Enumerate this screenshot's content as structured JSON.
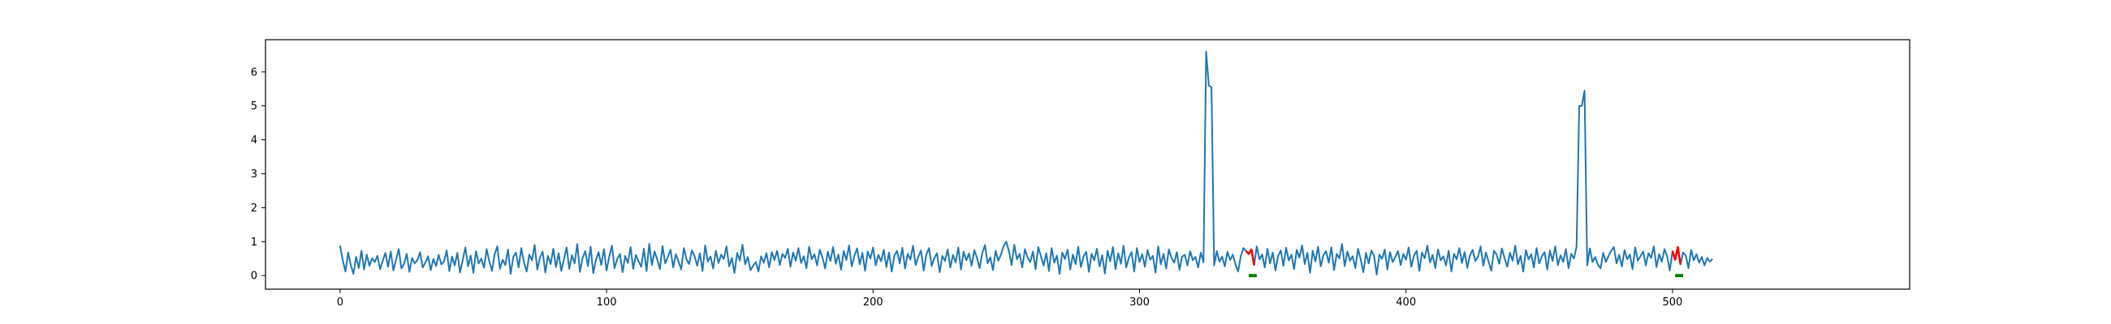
{
  "chart_data": {
    "type": "line",
    "title": "",
    "xlabel": "",
    "ylabel": "",
    "xlim": [
      -28,
      589
    ],
    "ylim": [
      -0.4,
      6.95
    ],
    "x_ticks": [
      {
        "value": 0,
        "label": "0"
      },
      {
        "value": 100,
        "label": "100"
      },
      {
        "value": 200,
        "label": "200"
      },
      {
        "value": 300,
        "label": "300"
      },
      {
        "value": 400,
        "label": "400"
      },
      {
        "value": 500,
        "label": "500"
      }
    ],
    "y_ticks": [
      {
        "value": 0,
        "label": "0"
      },
      {
        "value": 1,
        "label": "1"
      },
      {
        "value": 2,
        "label": "2"
      },
      {
        "value": 3,
        "label": "3"
      },
      {
        "value": 4,
        "label": "4"
      },
      {
        "value": 5,
        "label": "5"
      },
      {
        "value": 6,
        "label": "6"
      }
    ],
    "grid": false,
    "legend": "none",
    "colors": {
      "signal": "#1f77b4",
      "anomaly": "#ff0000",
      "marker": "#008000"
    },
    "series": [
      {
        "role": "signal",
        "x_start": 0,
        "x_step": 1,
        "values": [
          0.88,
          0.45,
          0.12,
          0.68,
          0.31,
          0.05,
          0.55,
          0.22,
          0.73,
          0.18,
          0.62,
          0.29,
          0.51,
          0.4,
          0.58,
          0.19,
          0.44,
          0.67,
          0.26,
          0.71,
          0.15,
          0.47,
          0.78,
          0.21,
          0.35,
          0.64,
          0.11,
          0.52,
          0.36,
          0.46,
          0.69,
          0.24,
          0.38,
          0.57,
          0.16,
          0.49,
          0.28,
          0.61,
          0.33,
          0.42,
          0.74,
          0.13,
          0.56,
          0.3,
          0.67,
          0.09,
          0.45,
          0.83,
          0.27,
          0.59,
          0.08,
          0.72,
          0.36,
          0.5,
          0.23,
          0.78,
          0.41,
          0.14,
          0.63,
          0.86,
          0.2,
          0.47,
          0.31,
          0.77,
          0.05,
          0.55,
          0.68,
          0.24,
          0.81,
          0.39,
          0.12,
          0.62,
          0.45,
          0.9,
          0.18,
          0.53,
          0.71,
          0.09,
          0.58,
          0.34,
          0.79,
          0.25,
          0.66,
          0.14,
          0.48,
          0.83,
          0.2,
          0.6,
          0.36,
          0.93,
          0.11,
          0.52,
          0.72,
          0.28,
          0.85,
          0.07,
          0.46,
          0.69,
          0.31,
          0.78,
          0.15,
          0.56,
          0.88,
          0.22,
          0.49,
          0.64,
          0.1,
          0.58,
          0.37,
          0.84,
          0.2,
          0.61,
          0.42,
          0.26,
          0.79,
          0.13,
          0.94,
          0.31,
          0.71,
          0.48,
          0.19,
          0.87,
          0.36,
          0.55,
          0.76,
          0.24,
          0.63,
          0.42,
          0.18,
          0.81,
          0.48,
          0.34,
          0.74,
          0.58,
          0.29,
          0.66,
          0.13,
          0.89,
          0.41,
          0.56,
          0.21,
          0.73,
          0.37,
          0.62,
          0.49,
          0.86,
          0.27,
          0.52,
          0.08,
          0.67,
          0.44,
          0.91,
          0.33,
          0.55,
          0.16,
          0.29,
          0.4,
          0.12,
          0.57,
          0.38,
          0.66,
          0.24,
          0.69,
          0.46,
          0.73,
          0.31,
          0.64,
          0.52,
          0.79,
          0.26,
          0.68,
          0.44,
          0.81,
          0.37,
          0.57,
          0.22,
          0.85,
          0.48,
          0.63,
          0.3,
          0.76,
          0.54,
          0.21,
          0.7,
          0.43,
          0.84,
          0.35,
          0.62,
          0.17,
          0.72,
          0.46,
          0.89,
          0.27,
          0.58,
          0.8,
          0.33,
          0.67,
          0.14,
          0.71,
          0.5,
          0.83,
          0.3,
          0.61,
          0.42,
          0.76,
          0.25,
          0.68,
          0.12,
          0.59,
          0.73,
          0.36,
          0.82,
          0.21,
          0.64,
          0.47,
          0.88,
          0.31,
          0.56,
          0.74,
          0.15,
          0.62,
          0.81,
          0.28,
          0.52,
          0.66,
          0.1,
          0.58,
          0.43,
          0.77,
          0.24,
          0.61,
          0.39,
          0.83,
          0.18,
          0.7,
          0.45,
          0.65,
          0.29,
          0.75,
          0.52,
          0.22,
          0.67,
          0.9,
          0.36,
          0.54,
          0.16,
          0.73,
          0.44,
          0.62,
          0.87,
          1.0,
          0.72,
          0.31,
          0.91,
          0.48,
          0.64,
          0.24,
          0.78,
          0.53,
          0.4,
          0.71,
          0.19,
          0.84,
          0.57,
          0.3,
          0.66,
          0.13,
          0.81,
          0.38,
          0.59,
          0.05,
          0.68,
          0.49,
          0.76,
          0.18,
          0.62,
          0.34,
          0.85,
          0.25,
          0.57,
          0.7,
          0.11,
          0.64,
          0.45,
          0.79,
          0.27,
          0.6,
          0.06,
          0.73,
          0.42,
          0.84,
          0.19,
          0.66,
          0.35,
          0.88,
          0.24,
          0.53,
          0.69,
          0.12,
          0.81,
          0.4,
          0.63,
          0.26,
          0.75,
          0.47,
          0.58,
          0.09,
          0.86,
          0.33,
          0.64,
          0.21,
          0.77,
          0.52,
          0.38,
          0.69,
          0.17,
          0.56,
          0.61,
          0.3,
          0.72,
          0.45,
          0.55,
          0.24,
          0.68,
          0.39,
          6.6,
          5.6,
          5.55,
          0.3,
          0.72,
          0.41,
          0.56,
          0.27,
          0.7,
          0.46,
          0.62,
          0.33,
          0.12,
          0.57,
          0.81,
          0.72,
          0.64,
          0.77,
          0.31,
          0.86,
          0.48,
          0.62,
          0.24,
          0.79,
          0.36,
          0.68,
          0.15,
          0.58,
          0.74,
          0.29,
          0.82,
          0.45,
          0.61,
          0.19,
          0.76,
          0.53,
          0.89,
          0.34,
          0.67,
          0.08,
          0.73,
          0.42,
          0.85,
          0.27,
          0.6,
          0.72,
          0.38,
          0.83,
          0.16,
          0.64,
          0.51,
          0.93,
          0.28,
          0.71,
          0.44,
          0.57,
          0.22,
          0.79,
          0.48,
          0.1,
          0.67,
          0.36,
          0.74,
          0.58,
          0.03,
          0.62,
          0.49,
          0.77,
          0.18,
          0.69,
          0.4,
          0.55,
          0.72,
          0.31,
          0.64,
          0.47,
          0.83,
          0.26,
          0.59,
          0.73,
          0.14,
          0.68,
          0.51,
          0.88,
          0.39,
          0.61,
          0.22,
          0.77,
          0.45,
          0.57,
          0.3,
          0.73,
          0.12,
          0.64,
          0.48,
          0.81,
          0.37,
          0.69,
          0.23,
          0.6,
          0.76,
          0.43,
          0.55,
          0.86,
          0.29,
          0.68,
          0.41,
          0.14,
          0.73,
          0.62,
          0.35,
          0.8,
          0.51,
          0.26,
          0.67,
          0.44,
          0.88,
          0.33,
          0.58,
          0.12,
          0.75,
          0.48,
          0.63,
          0.24,
          0.81,
          0.36,
          0.57,
          0.69,
          0.18,
          0.74,
          0.43,
          0.86,
          0.31,
          0.6,
          0.4,
          0.78,
          0.22,
          0.64,
          0.5,
          0.85,
          5.0,
          5.0,
          5.45,
          0.3,
          0.8,
          0.4,
          0.55,
          0.32,
          0.21,
          0.67,
          0.4,
          0.58,
          0.73,
          0.84,
          0.36,
          0.61,
          0.27,
          0.75,
          0.48,
          0.62,
          0.19,
          0.83,
          0.44,
          0.57,
          0.71,
          0.3,
          0.66,
          0.52,
          0.86,
          0.25,
          0.63,
          0.41,
          0.78,
          0.56,
          0.15,
          0.72,
          0.47,
          0.84,
          0.33,
          0.68,
          0.59,
          0.22,
          0.76,
          0.45,
          0.63,
          0.38,
          0.55,
          0.3,
          0.52,
          0.41,
          0.49
        ]
      }
    ],
    "anomaly_segments": [
      {
        "x_start": 340,
        "x_end": 343
      },
      {
        "x_start": 500,
        "x_end": 503
      }
    ],
    "markers": [
      {
        "x_start": 341,
        "x_end": 344,
        "y": 0
      },
      {
        "x_start": 501,
        "x_end": 504,
        "y": 0
      }
    ]
  }
}
